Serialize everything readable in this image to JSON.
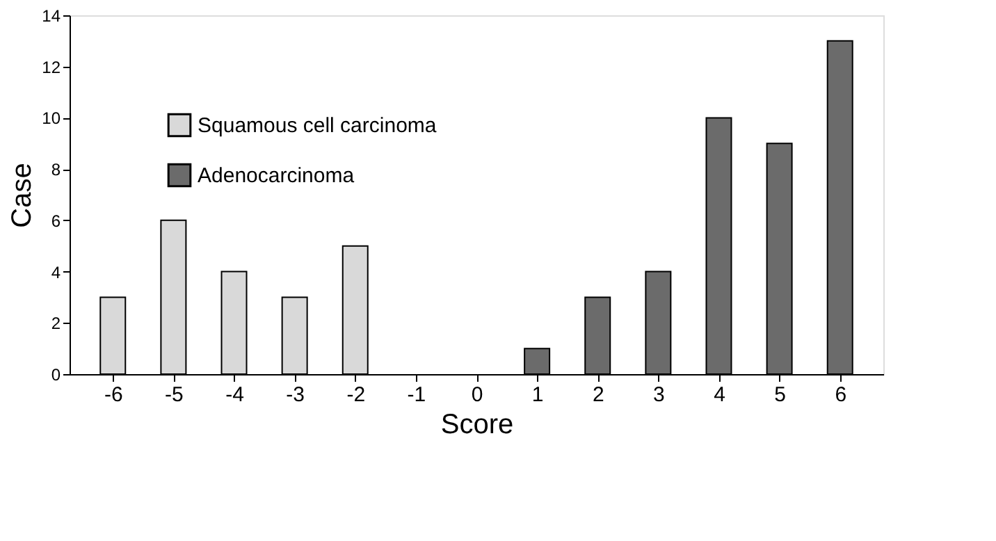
{
  "chart_data": {
    "type": "bar",
    "xlabel": "Score",
    "ylabel": "Case",
    "categories": [
      "-6",
      "-5",
      "-4",
      "-3",
      "-2",
      "-1",
      "0",
      "1",
      "2",
      "3",
      "4",
      "5",
      "6"
    ],
    "series": [
      {
        "name": "Squamous cell carcinoma",
        "color": "#d9d9d9",
        "values": [
          3,
          6,
          4,
          3,
          5,
          null,
          null,
          null,
          null,
          null,
          null,
          null,
          null
        ]
      },
      {
        "name": "Adenocarcinoma",
        "color": "#6b6b6b",
        "values": [
          null,
          null,
          null,
          null,
          null,
          null,
          null,
          1,
          3,
          4,
          10,
          9,
          13
        ]
      }
    ],
    "ylim": [
      0,
      14
    ],
    "yticks": [
      0,
      2,
      4,
      6,
      8,
      10,
      12,
      14
    ],
    "grid": false,
    "legend": "top left"
  }
}
